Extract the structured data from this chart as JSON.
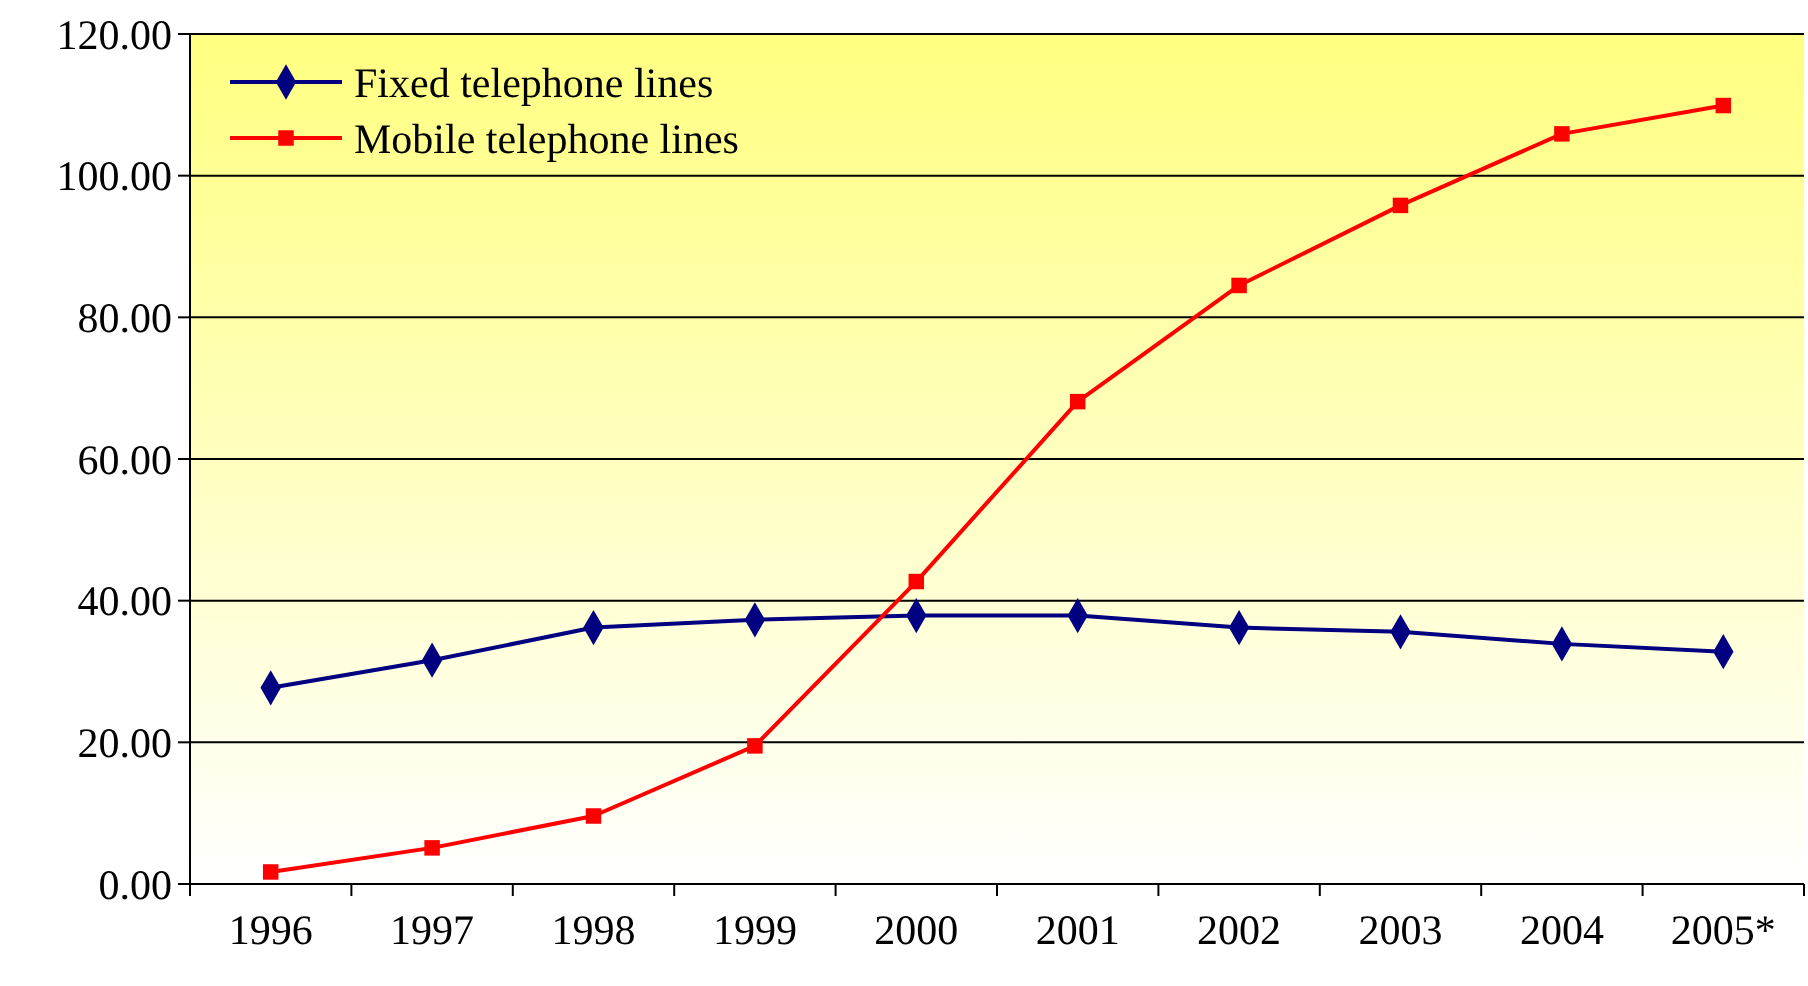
{
  "chart_data": {
    "type": "line",
    "categories": [
      "1996",
      "1997",
      "1998",
      "1999",
      "2000",
      "2001",
      "2002",
      "2003",
      "2004",
      "2005*"
    ],
    "series": [
      {
        "name": "Fixed telephone lines",
        "color": "#000080",
        "marker": "diamond",
        "values": [
          27.7,
          31.6,
          36.2,
          37.3,
          37.9,
          37.9,
          36.2,
          35.6,
          33.9,
          32.8
        ]
      },
      {
        "name": "Mobile telephone lines",
        "color": "#ff0000",
        "marker": "square",
        "values": [
          1.7,
          5.1,
          9.6,
          19.5,
          42.7,
          68.1,
          84.5,
          95.8,
          105.9,
          109.9
        ]
      }
    ],
    "ylim": [
      0,
      120
    ],
    "yticks": [
      {
        "value": 0,
        "label": "0.00"
      },
      {
        "value": 20,
        "label": "20.00"
      },
      {
        "value": 40,
        "label": "40.00"
      },
      {
        "value": 60,
        "label": "60.00"
      },
      {
        "value": 80,
        "label": "80.00"
      },
      {
        "value": 100,
        "label": "100.00"
      },
      {
        "value": 120,
        "label": "120.00"
      }
    ],
    "grid": "y",
    "legend": "top left",
    "line_style": "solid"
  }
}
